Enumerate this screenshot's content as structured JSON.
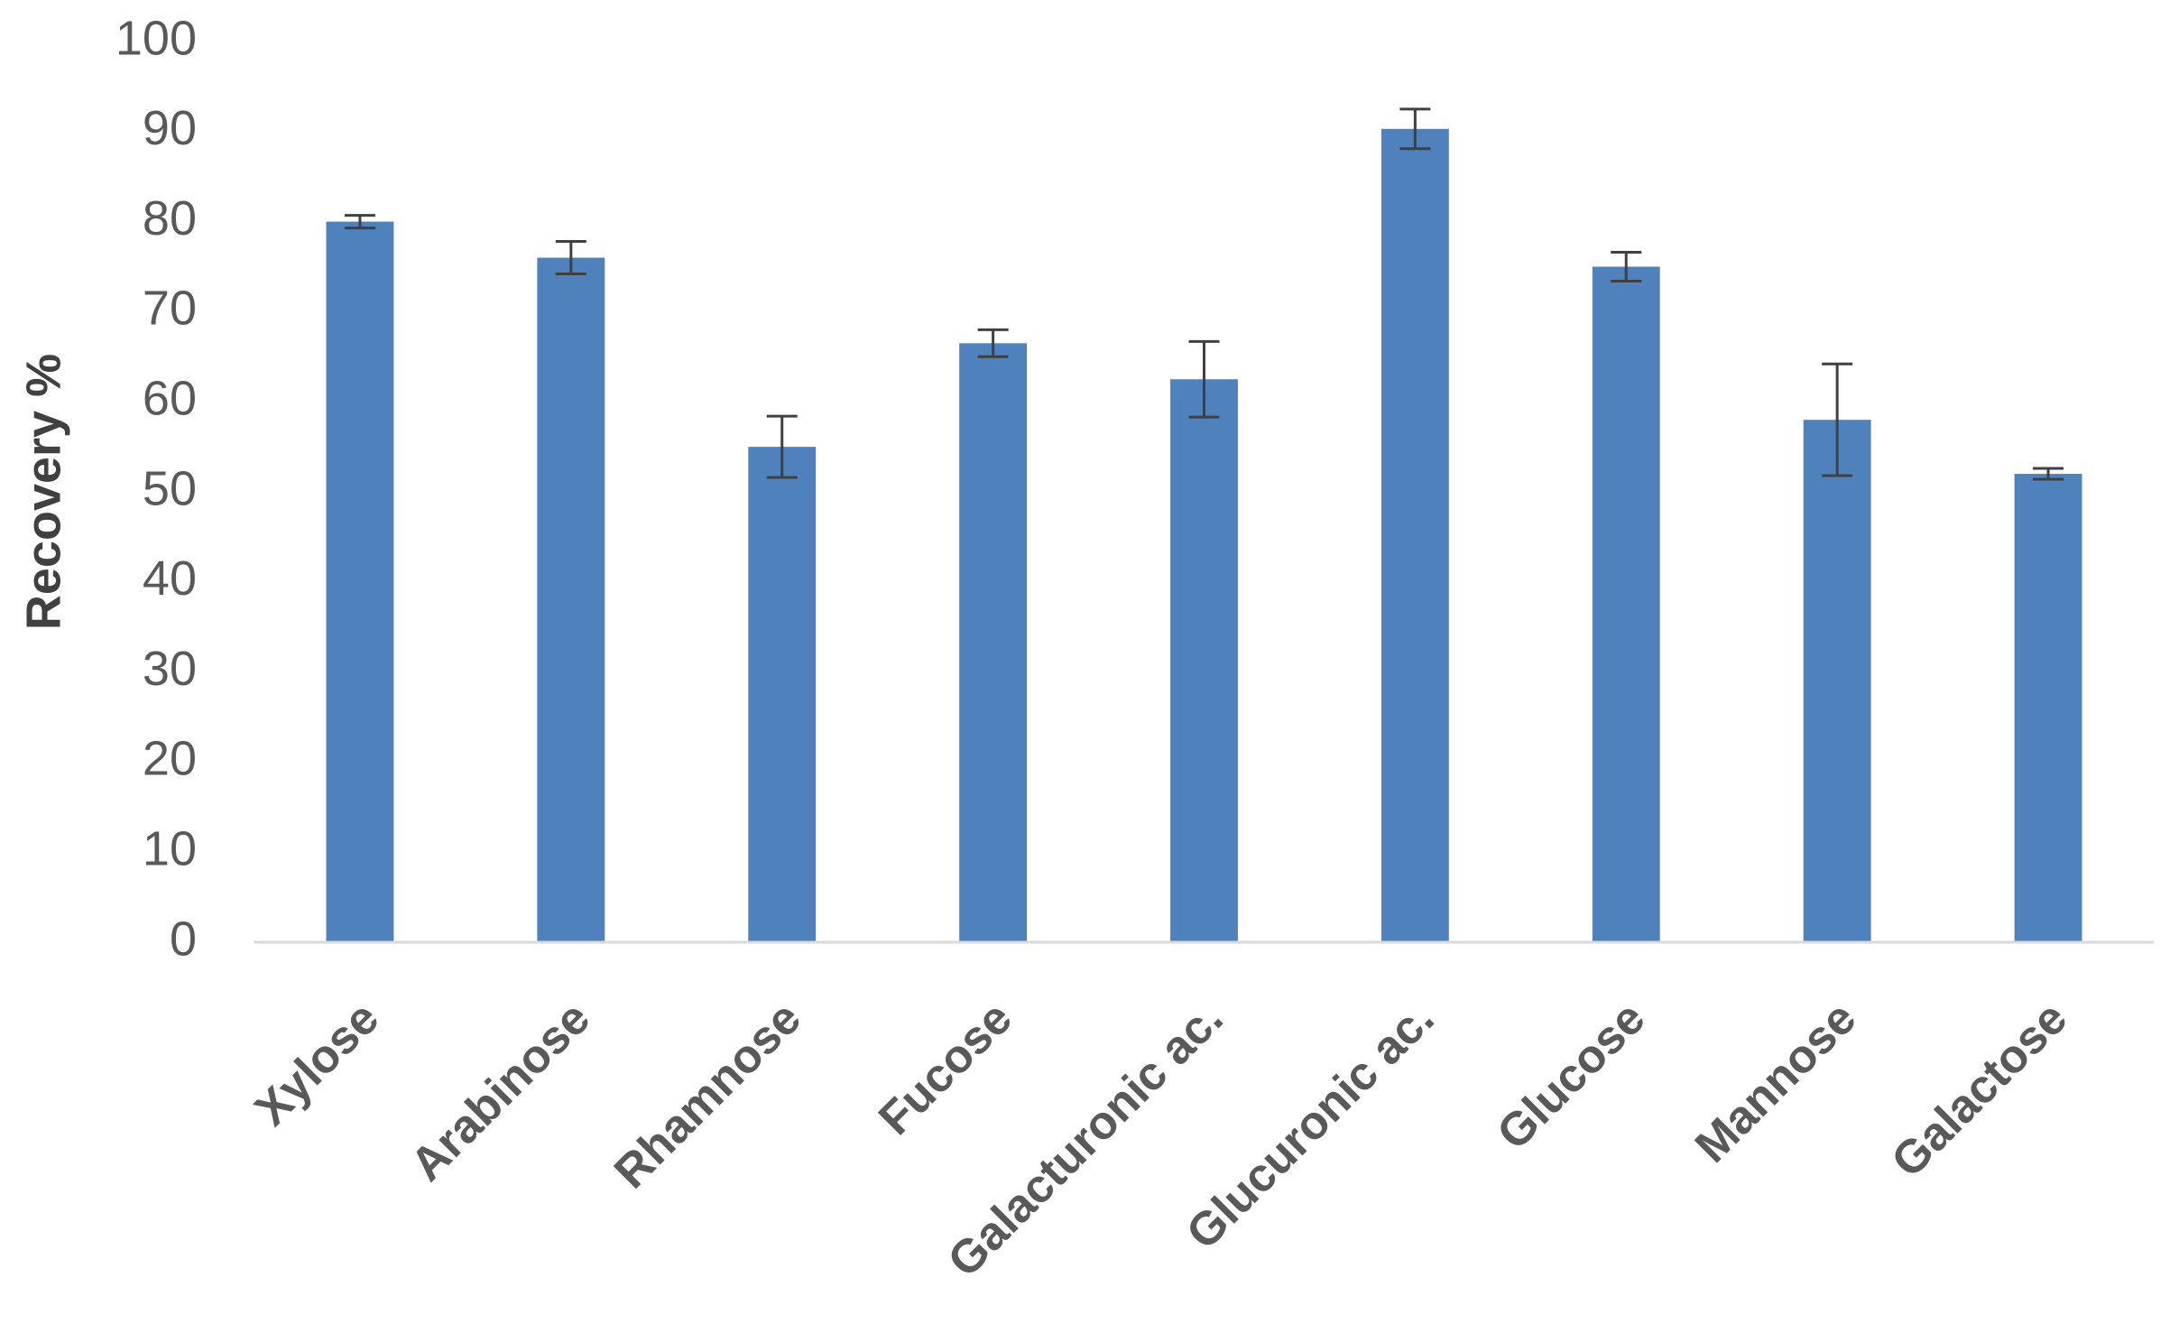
{
  "chart_data": {
    "type": "bar",
    "y_label": "Recovery %",
    "categories": [
      "Xylose",
      "Arabinose",
      "Rhamnose",
      "Fucose",
      "Galacturonic ac.",
      "Glucuronic ac.",
      "Glucose",
      "Mannose",
      "Galactose"
    ],
    "values": [
      80,
      76,
      55,
      66.5,
      62.5,
      90.3,
      75,
      58,
      52
    ],
    "errors": [
      0.7,
      1.8,
      3.4,
      1.5,
      4.2,
      2.2,
      1.6,
      6.2,
      0.6
    ],
    "color": "#4f81bd",
    "error_color": "#404040",
    "ylim": [
      0,
      100
    ],
    "yticks": [
      0,
      10,
      20,
      30,
      40,
      50,
      60,
      70,
      80,
      90,
      100
    ],
    "grid": false
  }
}
